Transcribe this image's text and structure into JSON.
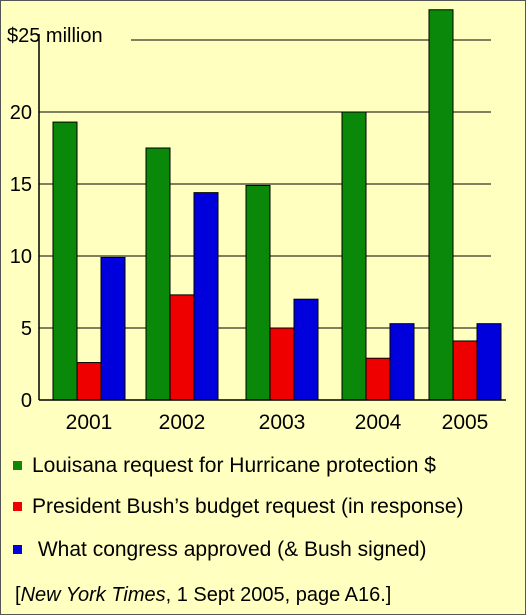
{
  "chart_data": {
    "type": "bar",
    "categories": [
      "2001",
      "2002",
      "2003",
      "2004",
      "2005"
    ],
    "series": [
      {
        "name": "Louisana request for Hurricane protection $",
        "color": "#0A880A",
        "values": [
          19.3,
          17.5,
          14.9,
          20.0,
          27.1
        ]
      },
      {
        "name": "President Bush’s budget request (in response)",
        "color": "#EE0000",
        "values": [
          2.6,
          7.3,
          5.0,
          2.9,
          4.1
        ]
      },
      {
        "name": "What congress approved (& Bush signed)",
        "color": "#0000DD",
        "values": [
          9.9,
          14.4,
          7.0,
          5.3,
          5.3
        ]
      }
    ],
    "ylim": [
      0,
      25
    ],
    "yticks": [
      0,
      5,
      10,
      15,
      20
    ],
    "ytick_labels": [
      "0",
      "5",
      "10",
      "15",
      "20"
    ],
    "top_label": "$25 million",
    "grid": true
  },
  "source": {
    "open": "[",
    "publication": "New York Times",
    "rest": ", 1 Sept 2005, page A16.]"
  }
}
